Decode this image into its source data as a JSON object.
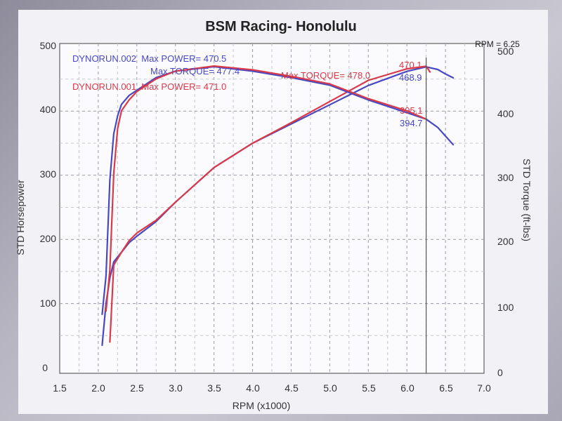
{
  "chart_data": {
    "type": "line",
    "title": "BSM Racing- Honolulu",
    "cursor_readout": "RPM = 6.25",
    "xlabel": "RPM (x1000)",
    "ylabel_left": "STD Horsepower",
    "ylabel_right": "STD Torque (ft-lbs)",
    "xlim": [
      1.5,
      7.0
    ],
    "ylim_left": [
      0,
      500
    ],
    "ylim_right": [
      0,
      500
    ],
    "x_ticks": [
      "1.5",
      "2.0",
      "2.5",
      "3.0",
      "3.5",
      "4.0",
      "4.5",
      "5.0",
      "5.5",
      "6.0",
      "6.5",
      "7.0"
    ],
    "y_ticks_left": [
      "0",
      "100",
      "200",
      "300",
      "400",
      "500"
    ],
    "y_ticks_right": [
      "0",
      "100",
      "200",
      "300",
      "400",
      "500"
    ],
    "grid": true,
    "cursor_x": 6.25,
    "legend": [
      {
        "line1": "DYNORUN.002  Max POWER= 470.5",
        "line2": "Max TORQUE= 477.4",
        "color": "#4848c0"
      },
      {
        "line1": "DYNORUN.001  Max POWER= 471.0",
        "line2": "Max TORQUE= 478.0",
        "color": "#d83a4a"
      }
    ],
    "cursor_values": [
      {
        "text": "470.1",
        "color": "#d83a4a"
      },
      {
        "text": "468.9",
        "color": "#4848c0"
      },
      {
        "text": "395.1",
        "color": "#d83a4a"
      },
      {
        "text": "394.7",
        "color": "#4848c0"
      }
    ],
    "series": [
      {
        "name": "DYNORUN.002",
        "measure": "power",
        "axis": "left",
        "color": "#4848c0",
        "x": [
          2.05,
          2.1,
          2.15,
          2.2,
          2.3,
          2.4,
          2.5,
          2.75,
          3.0,
          3.5,
          4.0,
          4.5,
          5.0,
          5.5,
          6.0,
          6.25,
          6.4,
          6.5,
          6.6
        ],
        "y": [
          35,
          100,
          140,
          165,
          180,
          195,
          205,
          228,
          258,
          312,
          350,
          380,
          410,
          440,
          462,
          469,
          465,
          458,
          452
        ]
      },
      {
        "name": "DYNORUN.001",
        "measure": "power",
        "axis": "left",
        "color": "#d83a4a",
        "x": [
          2.15,
          2.2,
          2.3,
          2.4,
          2.5,
          2.75,
          3.0,
          3.5,
          4.0,
          4.5,
          5.0,
          5.5,
          6.0,
          6.25,
          6.3
        ],
        "y": [
          40,
          160,
          180,
          198,
          210,
          230,
          258,
          312,
          350,
          382,
          415,
          448,
          466,
          470,
          461
        ]
      },
      {
        "name": "DYNORUN.002",
        "measure": "torque",
        "axis": "right",
        "color": "#4848c0",
        "x": [
          2.05,
          2.1,
          2.15,
          2.2,
          2.25,
          2.3,
          2.4,
          2.5,
          2.75,
          3.0,
          3.5,
          4.0,
          4.5,
          5.0,
          5.5,
          6.0,
          6.25,
          6.4,
          6.6
        ],
        "y": [
          90,
          150,
          300,
          372,
          400,
          418,
          432,
          440,
          460,
          470,
          477,
          470,
          460,
          448,
          425,
          405,
          395,
          382,
          355
        ]
      },
      {
        "name": "DYNORUN.001",
        "measure": "torque",
        "axis": "right",
        "color": "#d83a4a",
        "x": [
          2.1,
          2.15,
          2.2,
          2.25,
          2.3,
          2.4,
          2.5,
          2.75,
          3.0,
          3.5,
          4.0,
          4.5,
          5.0,
          5.5,
          6.0,
          6.25
        ],
        "y": [
          95,
          160,
          310,
          380,
          408,
          425,
          438,
          458,
          470,
          478,
          472,
          462,
          450,
          427,
          408,
          395
        ]
      }
    ]
  }
}
